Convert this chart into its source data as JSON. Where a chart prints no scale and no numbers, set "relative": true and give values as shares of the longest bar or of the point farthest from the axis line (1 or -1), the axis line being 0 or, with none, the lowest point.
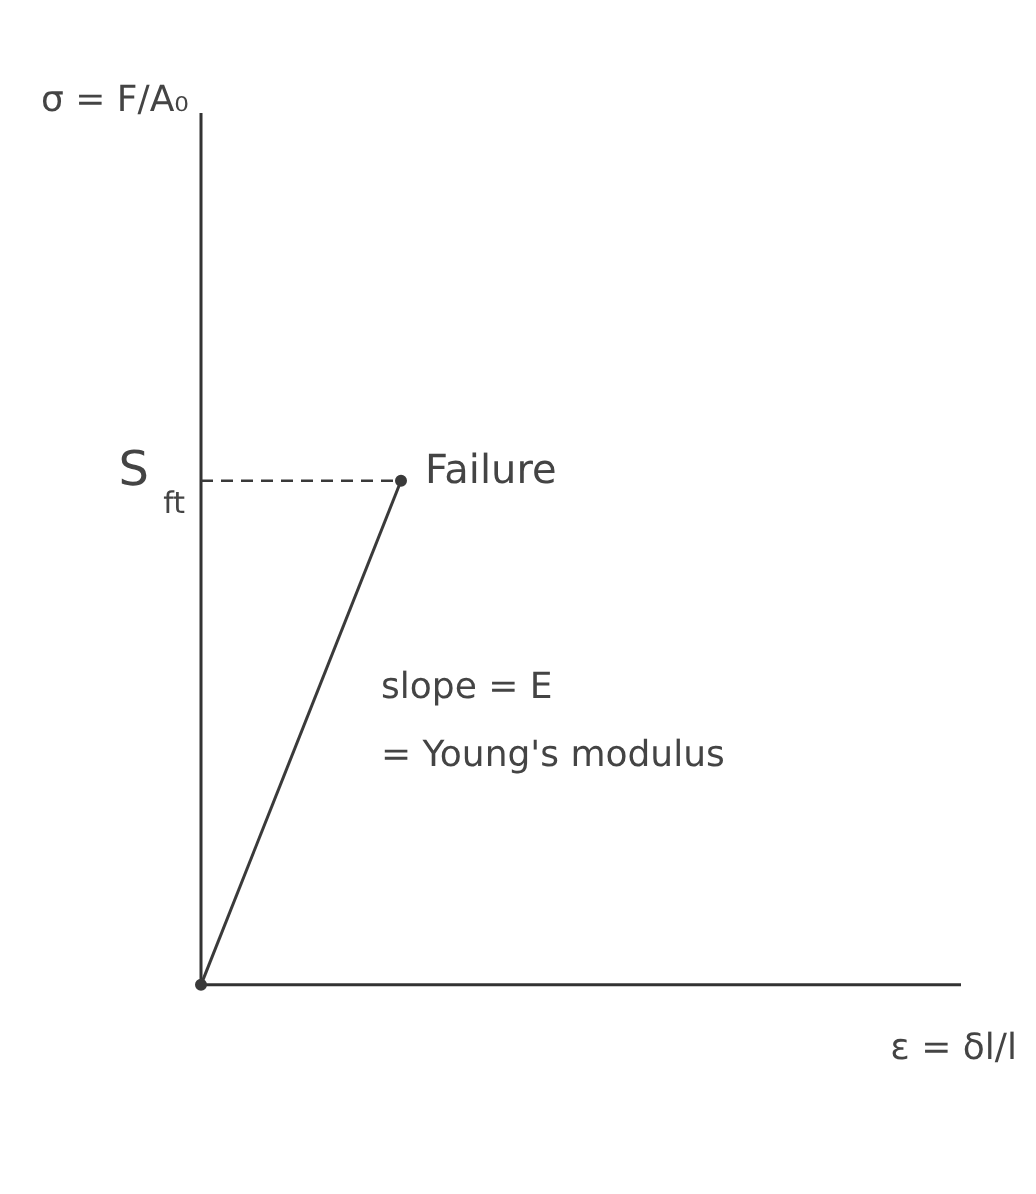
{
  "chart_data": {
    "type": "line",
    "relative": true,
    "categories": [
      null,
      null
    ],
    "values": [
      0,
      1
    ],
    "color": "#3a3a3a",
    "ref_lines": [
      {
        "axis": "y",
        "value": 1,
        "label": "S$_{ft}$",
        "line_style": "dashed"
      }
    ],
    "annotations": [
      "Failure",
      "slope = E",
      "= Young's modulus",
      "σ = F/A₀",
      "ε = δl/l"
    ],
    "marker": "circle",
    "grid": false
  }
}
